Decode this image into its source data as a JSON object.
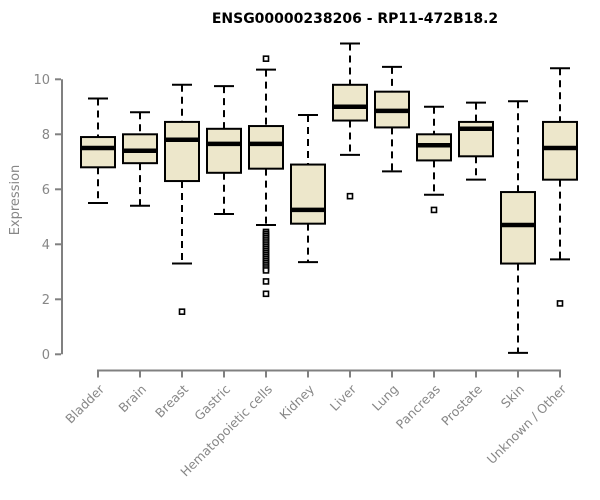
{
  "chart_data": {
    "type": "boxplot",
    "title": "ENSG00000238206 - RP11-472B18.2",
    "xlabel": "",
    "ylabel": "Expression",
    "yticks": [
      0,
      2,
      4,
      6,
      8,
      10
    ],
    "ylim": [
      0,
      11.5
    ],
    "grid": false,
    "legend": "none",
    "categories": [
      "Bladder",
      "Brain",
      "Breast",
      "Gastric",
      "Hematopoietic cells",
      "Kidney",
      "Liver",
      "Lung",
      "Pancreas",
      "Prostate",
      "Skin",
      "Unknown / Other"
    ],
    "series": [
      {
        "name": "Bladder",
        "whisker_low": 5.5,
        "q1": 6.8,
        "median": 7.5,
        "q3": 7.9,
        "whisker_high": 9.3,
        "outliers": []
      },
      {
        "name": "Brain",
        "whisker_low": 5.4,
        "q1": 6.95,
        "median": 7.4,
        "q3": 8.0,
        "whisker_high": 8.8,
        "outliers": []
      },
      {
        "name": "Breast",
        "whisker_low": 3.3,
        "q1": 6.3,
        "median": 7.8,
        "q3": 8.45,
        "whisker_high": 9.8,
        "outliers": [
          1.55
        ]
      },
      {
        "name": "Gastric",
        "whisker_low": 5.1,
        "q1": 6.6,
        "median": 7.65,
        "q3": 8.2,
        "whisker_high": 9.75,
        "outliers": []
      },
      {
        "name": "Hematopoietic cells",
        "whisker_low": 4.7,
        "q1": 6.75,
        "median": 7.65,
        "q3": 8.3,
        "whisker_high": 10.35,
        "outliers": [
          10.75,
          4.45,
          4.38,
          4.31,
          4.24,
          4.17,
          4.1,
          4.03,
          3.96,
          3.89,
          3.82,
          3.75,
          3.68,
          3.61,
          3.54,
          3.47,
          3.4,
          3.33,
          3.26,
          3.19,
          3.12,
          3.05,
          2.65,
          2.2
        ]
      },
      {
        "name": "Kidney",
        "whisker_low": 3.35,
        "q1": 4.75,
        "median": 5.25,
        "q3": 6.9,
        "whisker_high": 8.7,
        "outliers": []
      },
      {
        "name": "Liver",
        "whisker_low": 7.25,
        "q1": 8.5,
        "median": 9.0,
        "q3": 9.8,
        "whisker_high": 11.3,
        "outliers": [
          5.75
        ]
      },
      {
        "name": "Lung",
        "whisker_low": 6.65,
        "q1": 8.25,
        "median": 8.85,
        "q3": 9.55,
        "whisker_high": 10.45,
        "outliers": []
      },
      {
        "name": "Pancreas",
        "whisker_low": 5.8,
        "q1": 7.05,
        "median": 7.6,
        "q3": 8.0,
        "whisker_high": 9.0,
        "outliers": [
          5.25
        ]
      },
      {
        "name": "Prostate",
        "whisker_low": 6.35,
        "q1": 7.2,
        "median": 8.2,
        "q3": 8.45,
        "whisker_high": 9.15,
        "outliers": []
      },
      {
        "name": "Skin",
        "whisker_low": 0.05,
        "q1": 3.3,
        "median": 4.7,
        "q3": 5.9,
        "whisker_high": 9.2,
        "outliers": []
      },
      {
        "name": "Unknown / Other",
        "whisker_low": 3.45,
        "q1": 6.35,
        "median": 7.5,
        "q3": 8.45,
        "whisker_high": 10.4,
        "outliers": [
          1.85
        ]
      }
    ],
    "colors": {
      "box_fill": "#EDE7CB",
      "box_stroke": "#000000",
      "median_stroke": "#000000",
      "whisker_stroke": "#000000",
      "outlier_stroke": "#000000",
      "outlier_fill": "#FFFFFF",
      "axis": "#808080",
      "tick_label": "#878787",
      "title": "#000000",
      "background": "#FFFFFF"
    }
  }
}
